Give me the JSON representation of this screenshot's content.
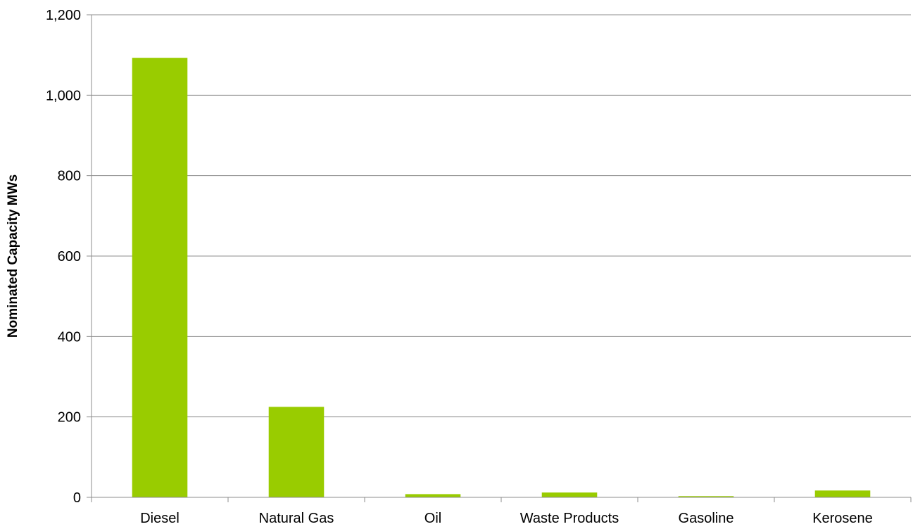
{
  "chart_data": {
    "type": "bar",
    "title": "",
    "xlabel": "",
    "ylabel": "Nominated Capacity MWs",
    "categories": [
      "Diesel",
      "Natural Gas",
      "Oil",
      "Waste Products",
      "Gasoline",
      "Kerosene"
    ],
    "values": [
      1093,
      225,
      8,
      12,
      3,
      17
    ],
    "ylim": [
      0,
      1200
    ],
    "yticks": [
      0,
      200,
      400,
      600,
      800,
      1000,
      1200
    ],
    "ytick_labels": [
      "0",
      "200",
      "400",
      "600",
      "800",
      "1,000",
      "1,200"
    ],
    "grid": true,
    "legend": "none",
    "colors": {
      "bar": "#99cc00",
      "grid": "#8c8c8c",
      "axis": "#8c8c8c"
    }
  }
}
